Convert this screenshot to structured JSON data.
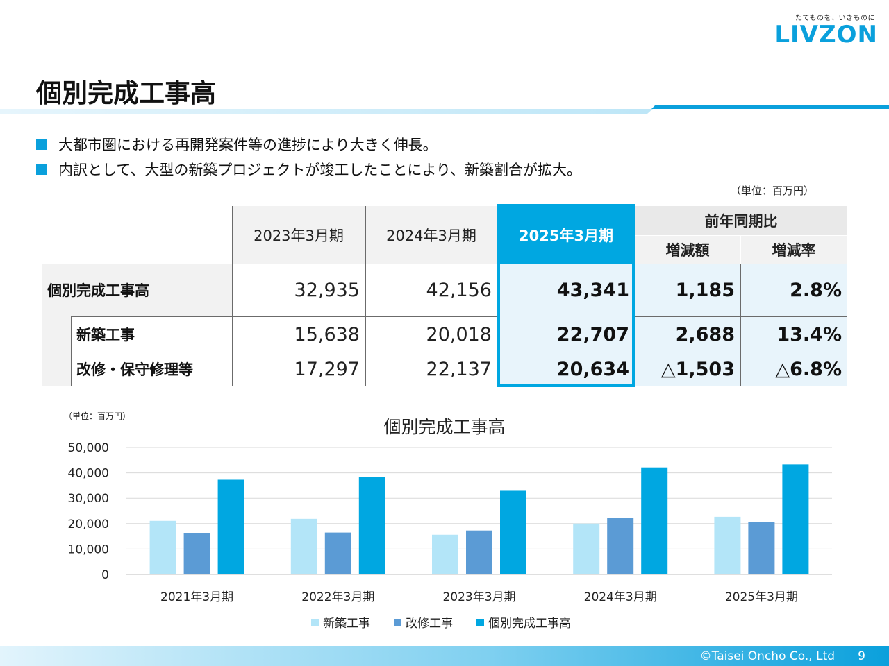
{
  "header": {
    "tagline": "たてものを、いきものに",
    "logo": "LIVZON",
    "title": "個別完成工事高"
  },
  "bullets": [
    "大都市圏における再開発案件等の進捗により大きく伸長。",
    "内訳として、大型の新築プロジェクトが竣工したことにより、新築割合が拡大。"
  ],
  "table": {
    "unit": "（単位：百万円）",
    "columns": [
      "2023年3月期",
      "2024年3月期",
      "2025年3月期"
    ],
    "yoy_header": "前年同期比",
    "yoy_cols": [
      "増減額",
      "増減率"
    ],
    "rows": [
      {
        "label": "個別完成工事高",
        "values": [
          "32,935",
          "42,156",
          "43,341"
        ],
        "diff": "1,185",
        "rate": "2.8%"
      },
      {
        "label": "新築工事",
        "values": [
          "15,638",
          "20,018",
          "22,707"
        ],
        "diff": "2,688",
        "rate": "13.4%"
      },
      {
        "label": "改修・保守修理等",
        "values": [
          "17,297",
          "22,137",
          "20,634"
        ],
        "diff": "△1,503",
        "rate": "△6.8%"
      }
    ]
  },
  "chart_data": {
    "type": "bar",
    "unit": "（単位：百万円）",
    "title": "個別完成工事高",
    "categories": [
      "2021年3月期",
      "2022年3月期",
      "2023年3月期",
      "2024年3月期",
      "2025年3月期"
    ],
    "series": [
      {
        "name": "新築工事",
        "color": "#b3e5f8",
        "values": [
          21100,
          21900,
          15638,
          20018,
          22707
        ]
      },
      {
        "name": "改修工事",
        "color": "#5b9bd5",
        "values": [
          16200,
          16500,
          17297,
          22137,
          20634
        ]
      },
      {
        "name": "個別完成工事高",
        "color": "#00a7e1",
        "values": [
          37300,
          38400,
          32935,
          42156,
          43341
        ]
      }
    ],
    "ylim": [
      0,
      50000
    ],
    "yticks": [
      "0",
      "10,000",
      "20,000",
      "30,000",
      "40,000",
      "50,000"
    ],
    "legend": "bottom",
    "grid": true
  },
  "footer": {
    "copyright": "©Taisei Oncho Co., Ltd",
    "page": "9"
  },
  "colors": {
    "accent": "#0aa0dc",
    "highlight_border": "#00a7e1",
    "footer_light": "#d6effb"
  }
}
